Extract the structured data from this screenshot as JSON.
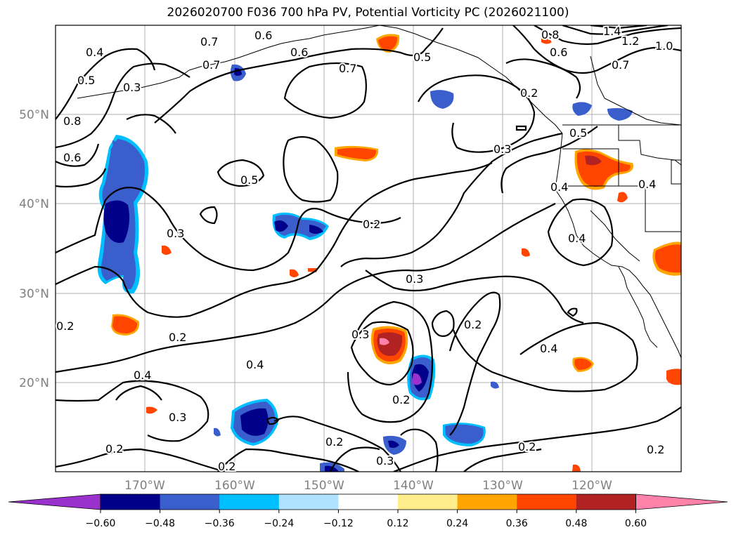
{
  "title": "2026020700 F036 700 hPa PV, Potential Vorticity PC (2026021100)",
  "lon_ticks": [
    "170°W",
    "160°W",
    "150°W",
    "140°W",
    "130°W",
    "120°W"
  ],
  "lat_ticks": [
    "50°N",
    "40°N",
    "30°N",
    "20°N"
  ],
  "contour_labels": [
    "0.4",
    "0.5",
    "0.3",
    "0.8",
    "0.6",
    "0.7",
    "0.6",
    "0.7",
    "0.5",
    "0.2",
    "0.8",
    "1.4",
    "1.2",
    "1.0",
    "0.7",
    "0.5",
    "0.3",
    "0.5",
    "0.4",
    "0.4",
    "0.3",
    "0.2",
    "0.4",
    "0.3",
    "0.2",
    "0.2",
    "0.3",
    "0.2",
    "0.4",
    "0.3",
    "0.2",
    "0.2",
    "0.3",
    "0.2",
    "0.4",
    "0.2",
    "0.2",
    "0.2"
  ],
  "colorbar": {
    "ticks": [
      "−0.60",
      "−0.48",
      "−0.36",
      "−0.24",
      "−0.12",
      "0.12",
      "0.24",
      "0.36",
      "0.48",
      "0.60"
    ],
    "colors": [
      "#9932CC",
      "#00008B",
      "#3A5FCD",
      "#00BFFF",
      "#B0E2FF",
      "#FFFFFF",
      "#FFEC8B",
      "#FFA500",
      "#FF4500",
      "#B22222",
      "#FF82AB"
    ]
  }
}
